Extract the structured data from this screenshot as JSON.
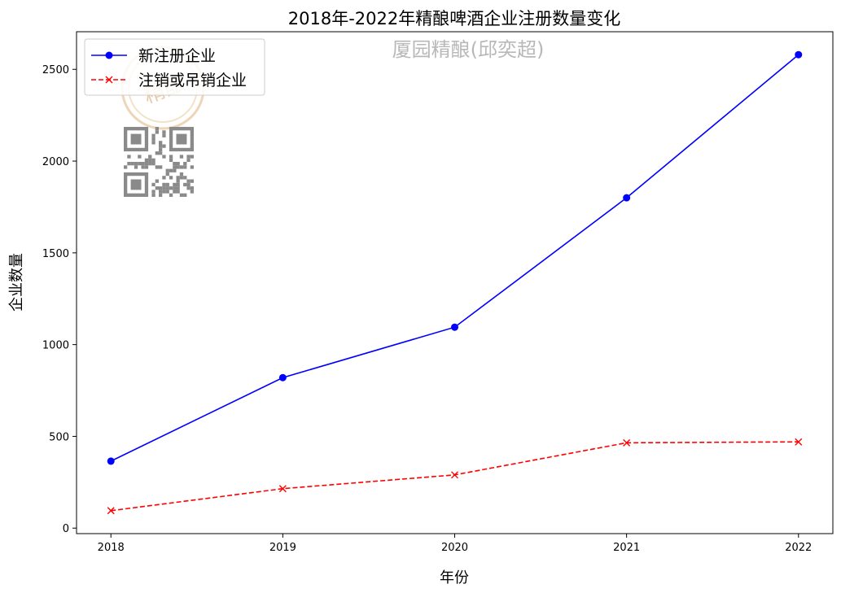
{
  "chart_data": {
    "type": "line",
    "title": "2018年-2022年精酿啤酒企业注册数量变化",
    "xlabel": "年份",
    "ylabel": "企业数量",
    "x": [
      2018,
      2019,
      2020,
      2021,
      2022
    ],
    "x_tick_labels": [
      "2018",
      "2019",
      "2020",
      "2021",
      "2022"
    ],
    "y_ticks": [
      0,
      500,
      1000,
      1500,
      2000,
      2500
    ],
    "y_tick_labels": [
      "0",
      "500",
      "1000",
      "1500",
      "2000",
      "2500"
    ],
    "ylim": [
      -30,
      2705
    ],
    "xlim": [
      2017.8,
      2022.2
    ],
    "grid": false,
    "legend_position": "top-left",
    "series": [
      {
        "name": "新注册企业",
        "values": [
          365,
          820,
          1095,
          1800,
          2580
        ],
        "color": "#0000ff",
        "marker": "circle",
        "linestyle": "solid"
      },
      {
        "name": "注销或吊销企业",
        "values": [
          95,
          215,
          290,
          465,
          470
        ],
        "color": "#ff0000",
        "marker": "x",
        "linestyle": "dashed"
      }
    ]
  },
  "watermark": {
    "text": "厦园精酿(邱奕超)",
    "seal_text": "精酿",
    "qr_icon": "qr-code-icon",
    "seal_color": "#e8c9a0"
  }
}
